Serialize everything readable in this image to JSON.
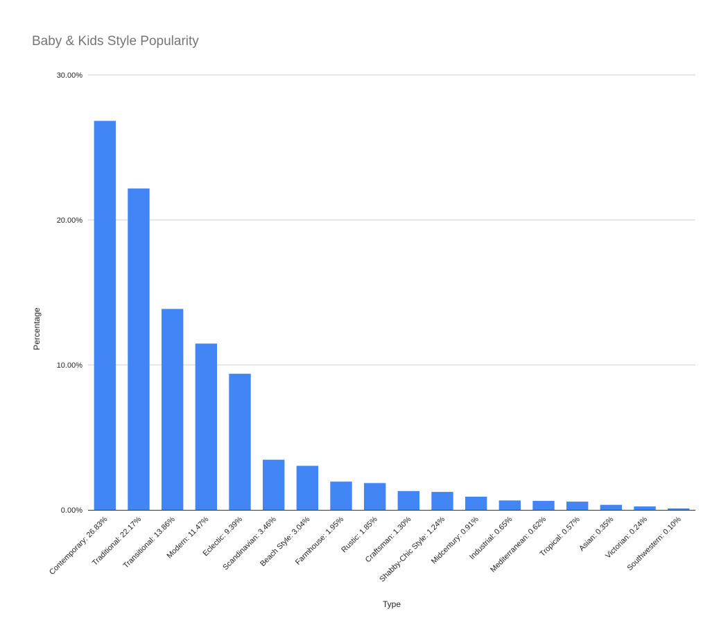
{
  "chart_data": {
    "type": "bar",
    "title": "Baby & Kids Style Popularity",
    "xlabel": "Type",
    "ylabel": "Percentage",
    "ylim": [
      0,
      30
    ],
    "yticks": [
      {
        "value": 0,
        "label": "0.00%"
      },
      {
        "value": 10,
        "label": "10.00%"
      },
      {
        "value": 20,
        "label": "20.00%"
      },
      {
        "value": 30,
        "label": "30.00%"
      }
    ],
    "grid": true,
    "legend": "none",
    "bar_color": "#4285f4",
    "categories": [
      "Contemporary: 26.83%",
      "Traditional: 22.17%",
      "Transitional: 13.86%",
      "Modern: 11.47%",
      "Eclectic: 9.39%",
      "Scandinavian: 3.46%",
      "Beach Style: 3.04%",
      "Farmhouse: 1.95%",
      "Rustic: 1.85%",
      "Craftsman: 1.30%",
      "Shabby-Chic Style: 1.24%",
      "Midcentury: 0.91%",
      "Industrial: 0.65%",
      "Mediterranean: 0.62%",
      "Tropical: 0.57%",
      "Asian: 0.35%",
      "Victorian: 0.24%",
      "Southwestern: 0.10%"
    ],
    "values": [
      26.83,
      22.17,
      13.86,
      11.47,
      9.39,
      3.46,
      3.04,
      1.95,
      1.85,
      1.3,
      1.24,
      0.91,
      0.65,
      0.62,
      0.57,
      0.35,
      0.24,
      0.1
    ]
  }
}
